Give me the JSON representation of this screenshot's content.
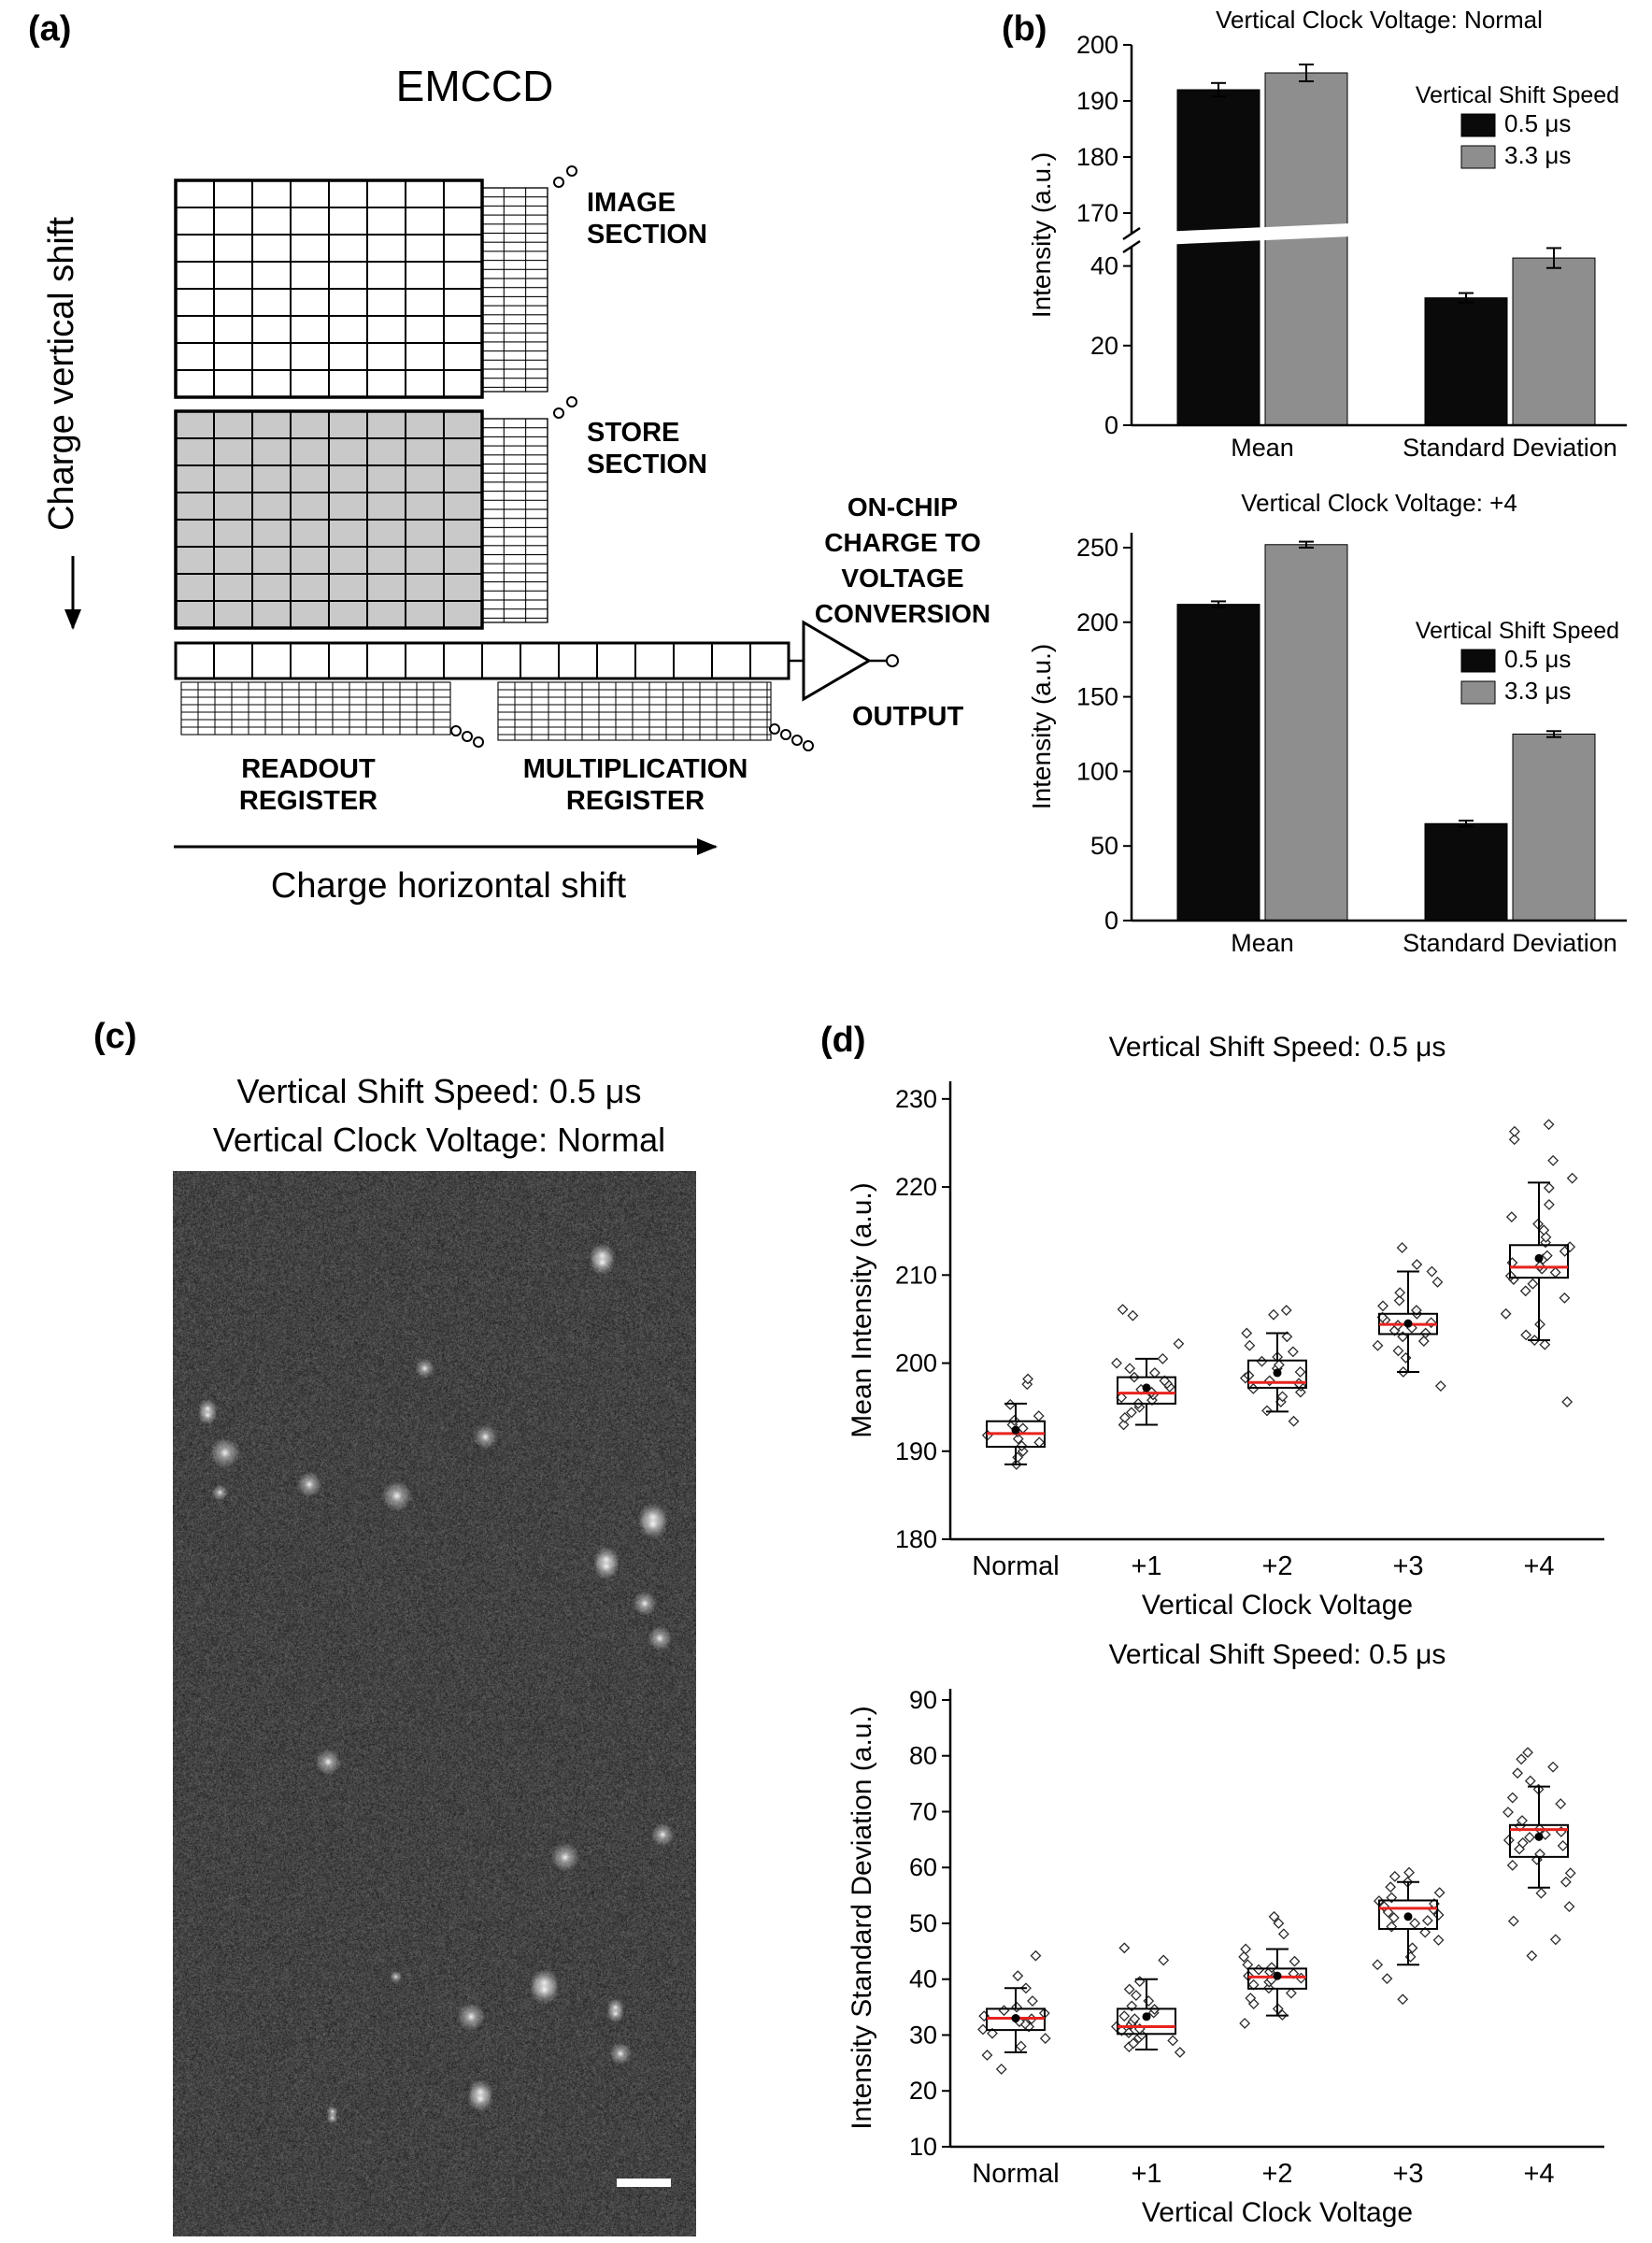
{
  "figure": {
    "panel_a": {
      "label": "(a)",
      "title": "EMCCD",
      "vertical_axis": "Charge vertical shift",
      "horizontal_axis": "Charge horizontal shift",
      "image_section": [
        "IMAGE",
        "SECTION"
      ],
      "store_section": [
        "STORE",
        "SECTION"
      ],
      "onchip": [
        "ON-CHIP",
        "CHARGE TO",
        "VOLTAGE",
        "CONVERSION"
      ],
      "output": "OUTPUT",
      "readout": [
        "READOUT",
        "REGISTER"
      ],
      "multiplication": [
        "MULTIPLICATION",
        "REGISTER"
      ],
      "store_fill": "#c9c9c9"
    },
    "panel_b": {
      "label": "(b)"
    },
    "panel_c": {
      "label": "(c)",
      "title_line1": "Vertical Shift Speed: 0.5 μs",
      "title_line2": "Vertical Clock Voltage: Normal"
    },
    "panel_d": {
      "label": "(d)"
    }
  },
  "chart_data": [
    {
      "id": "bar-normal",
      "type": "bar",
      "title": "Vertical Clock Voltage: Normal",
      "ylabel": "Intensity (a.u.)",
      "categories": [
        "Mean",
        "Standard Deviation"
      ],
      "series": [
        {
          "name": "0.5 μs",
          "color": "#0a0a0a",
          "values": [
            192,
            32
          ],
          "errors": [
            1.2,
            1.2
          ]
        },
        {
          "name": "3.3 μs",
          "color": "#8e8e8e",
          "values": [
            195,
            42
          ],
          "errors": [
            1.5,
            2.5
          ]
        }
      ],
      "legend_title": "Vertical Shift Speed",
      "axis_break": {
        "lower_range": [
          0,
          50
        ],
        "lower_ticks": [
          0,
          20,
          40
        ],
        "upper_range": [
          170,
          200
        ],
        "upper_ticks": [
          170,
          180,
          190,
          200
        ]
      }
    },
    {
      "id": "bar-plus4",
      "type": "bar",
      "title": "Vertical Clock Voltage: +4",
      "ylabel": "Intensity (a.u.)",
      "categories": [
        "Mean",
        "Standard Deviation"
      ],
      "series": [
        {
          "name": "0.5 μs",
          "color": "#0a0a0a",
          "values": [
            212,
            65
          ],
          "errors": [
            2,
            2
          ]
        },
        {
          "name": "3.3 μs",
          "color": "#8e8e8e",
          "values": [
            252,
            125
          ],
          "errors": [
            2,
            2
          ]
        }
      ],
      "legend_title": "Vertical Shift Speed",
      "ylim": [
        0,
        260
      ],
      "yticks": [
        0,
        50,
        100,
        150,
        200,
        250
      ]
    },
    {
      "id": "box-mean",
      "type": "box",
      "title": "Vertical Shift Speed: 0.5 μs",
      "xlabel": "Vertical Clock Voltage",
      "ylabel": "Mean Intensity (a.u.)",
      "ylim": [
        180,
        232
      ],
      "yticks": [
        180,
        190,
        200,
        210,
        220,
        230
      ],
      "categories": [
        "Normal",
        "+1",
        "+2",
        "+3",
        "+4"
      ],
      "median_color": "#e8231f",
      "groups": [
        {
          "q1": 190.5,
          "median": 192,
          "q3": 193.4,
          "whisker_low": 188.5,
          "whisker_high": 195.4,
          "mean": 192.4,
          "points": [
            188.5,
            189.3,
            190,
            190.6,
            191,
            191.4,
            191.8,
            192.2,
            192.6,
            193,
            193.5,
            194,
            195.3,
            197.6,
            198.2
          ]
        },
        {
          "q1": 195.4,
          "median": 196.6,
          "q3": 198.4,
          "whisker_low": 193,
          "whisker_high": 200.5,
          "mean": 197.2,
          "points": [
            193,
            193.8,
            194.4,
            195,
            195.4,
            195.8,
            196.1,
            196.4,
            196.7,
            197,
            197.3,
            197.7,
            198,
            198.4,
            198.9,
            199.4,
            200,
            200.5,
            202.2,
            205.4,
            206.1
          ]
        },
        {
          "q1": 197.2,
          "median": 197.8,
          "q3": 200.3,
          "whisker_low": 194.5,
          "whisker_high": 203.4,
          "mean": 198.9,
          "points": [
            193.4,
            194.6,
            195.6,
            196.2,
            196.7,
            197.1,
            197.4,
            197.7,
            198,
            198.3,
            198.6,
            199,
            199.4,
            199.8,
            200.2,
            200.7,
            201.3,
            202,
            203,
            203.4,
            205.5,
            206
          ]
        },
        {
          "q1": 203.3,
          "median": 204.4,
          "q3": 205.6,
          "whisker_low": 199,
          "whisker_high": 210.4,
          "mean": 204.5,
          "points": [
            197.4,
            199,
            200.6,
            201.4,
            202,
            202.5,
            203,
            203.4,
            203.7,
            204,
            204.3,
            204.6,
            204.9,
            205.2,
            205.6,
            206,
            206.5,
            207.1,
            208,
            209.2,
            210.4,
            211.2,
            213.1
          ]
        },
        {
          "q1": 209.7,
          "median": 210.9,
          "q3": 213.4,
          "whisker_low": 202.6,
          "whisker_high": 220.5,
          "mean": 211.9,
          "points": [
            195.6,
            202.1,
            202.6,
            203.2,
            204.4,
            205.6,
            207.4,
            208.2,
            209,
            209.5,
            209.9,
            210.3,
            210.7,
            211,
            211.4,
            211.8,
            212.2,
            212.7,
            213.2,
            213.7,
            214.3,
            215.1,
            215.8,
            216.6,
            218,
            219.9,
            221,
            223,
            225.4,
            226.3,
            227.1
          ]
        }
      ]
    },
    {
      "id": "box-sd",
      "type": "box",
      "title": "Vertical Shift Speed: 0.5 μs",
      "xlabel": "Vertical Clock Voltage",
      "ylabel": "Intensity Standard Deviation (a.u.)",
      "ylim": [
        10,
        92
      ],
      "yticks": [
        10,
        20,
        30,
        40,
        50,
        60,
        70,
        80,
        90
      ],
      "categories": [
        "Normal",
        "+1",
        "+2",
        "+3",
        "+4"
      ],
      "median_color": "#e8231f",
      "groups": [
        {
          "q1": 30.9,
          "median": 33,
          "q3": 34.7,
          "whisker_low": 26.9,
          "whisker_high": 38.4,
          "mean": 33,
          "points": [
            23.9,
            26.4,
            28,
            29.4,
            30.3,
            31,
            31.5,
            32,
            32.4,
            32.9,
            33.4,
            33.9,
            34.4,
            35,
            36.1,
            38.4,
            40.6,
            44.2
          ]
        },
        {
          "q1": 30.2,
          "median": 31.5,
          "q3": 34.7,
          "whisker_low": 27.4,
          "whisker_high": 40,
          "mean": 33.3,
          "points": [
            26.9,
            27.9,
            28.5,
            29,
            29.5,
            30,
            30.4,
            30.8,
            31.1,
            31.5,
            31.9,
            32.4,
            32.9,
            33.4,
            34,
            34.6,
            35.2,
            36.1,
            37.1,
            38.2,
            39.6,
            43.4,
            45.6
          ]
        },
        {
          "q1": 38.3,
          "median": 40.4,
          "q3": 41.9,
          "whisker_low": 33.5,
          "whisker_high": 45.4,
          "mean": 40.6,
          "points": [
            32.1,
            33.6,
            34.7,
            35.6,
            36.6,
            37.5,
            38.4,
            39,
            39.5,
            39.9,
            40.2,
            40.6,
            41,
            41.3,
            41.7,
            42.1,
            42.6,
            43.2,
            44,
            45.4,
            48.1,
            50,
            51.2
          ]
        },
        {
          "q1": 49,
          "median": 52.7,
          "q3": 54.1,
          "whisker_low": 42.6,
          "whisker_high": 57.4,
          "mean": 51.2,
          "points": [
            36.4,
            40.1,
            42.6,
            44,
            45.6,
            47,
            48.4,
            49.4,
            50,
            50.5,
            51,
            51.5,
            52,
            52.5,
            53,
            53.5,
            54,
            54.6,
            55.5,
            56.5,
            57.4,
            58.4,
            59.1
          ]
        },
        {
          "q1": 61.9,
          "median": 66.8,
          "q3": 67.6,
          "whisker_low": 56.4,
          "whisker_high": 74.5,
          "mean": 65.5,
          "points": [
            44.2,
            47.1,
            50.4,
            53,
            55.4,
            57.4,
            59,
            60.4,
            61.4,
            62.4,
            63.3,
            63.9,
            64.4,
            64.9,
            65.4,
            65.9,
            66.4,
            66.9,
            67.4,
            68.4,
            69.9,
            71.4,
            72.5,
            74,
            75.5,
            76.9,
            78,
            79.4,
            80.6
          ]
        }
      ]
    }
  ]
}
